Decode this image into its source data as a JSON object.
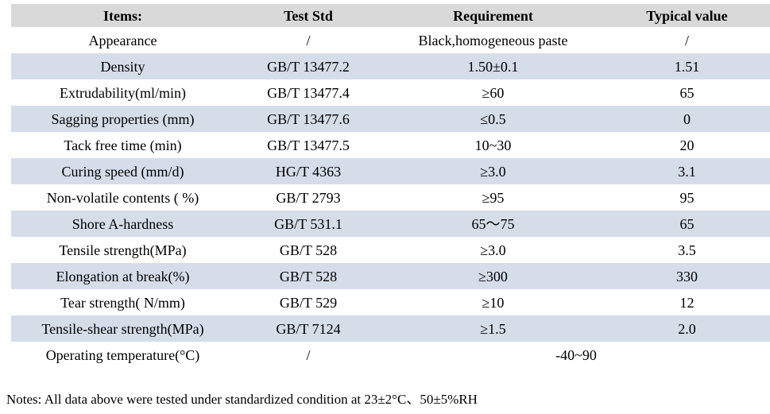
{
  "table": {
    "headers": [
      "Items:",
      "Test Std",
      "Requirement",
      "Typical value"
    ],
    "rows": [
      {
        "item": "Appearance",
        "std": "/",
        "req": "Black,homogeneous paste",
        "typ": "/"
      },
      {
        "item": "Density",
        "std": "GB/T 13477.2",
        "req": "1.50±0.1",
        "typ": "1.51"
      },
      {
        "item": "Extrudability(ml/min)",
        "std": "GB/T 13477.4",
        "req": "≥60",
        "typ": "65"
      },
      {
        "item": "Sagging properties (mm)",
        "std": "GB/T 13477.6",
        "req": "≤0.5",
        "typ": "0"
      },
      {
        "item": "Tack free time (min)",
        "std": "GB/T 13477.5",
        "req": "10~30",
        "typ": "20"
      },
      {
        "item": "Curing speed (mm/d)",
        "std": "HG/T 4363",
        "req": "≥3.0",
        "typ": "3.1"
      },
      {
        "item": "Non-volatile contents ( %)",
        "std": "GB/T 2793",
        "req": "≥95",
        "typ": "95"
      },
      {
        "item": "Shore A-hardness",
        "std": "GB/T 531.1",
        "req": "65～75",
        "typ": "65"
      },
      {
        "item": "Tensile strength(MPa)",
        "std": "GB/T 528",
        "req": "≥3.0",
        "typ": "3.5"
      },
      {
        "item": "Elongation at break(%)",
        "std": "GB/T 528",
        "req": "≥300",
        "typ": "330"
      },
      {
        "item": "Tear strength( N/mm)",
        "std": "GB/T 529",
        "req": "≥10",
        "typ": "12"
      },
      {
        "item": "Tensile-shear strength(MPa)",
        "std": "GB/T 7124",
        "req": "≥1.5",
        "typ": "2.0"
      },
      {
        "item": "Operating temperature(°C)",
        "std": "/",
        "req": "-40~90",
        "typ": null,
        "span_req": true
      }
    ]
  },
  "notes": "Notes: All data above were tested under standardized condition at 23±2°C、50±5%RH",
  "colors": {
    "header_bg": "#d9d9d9",
    "alt_row_bg": "#d5dde9",
    "text": "#000000",
    "page_bg": "#ffffff"
  }
}
